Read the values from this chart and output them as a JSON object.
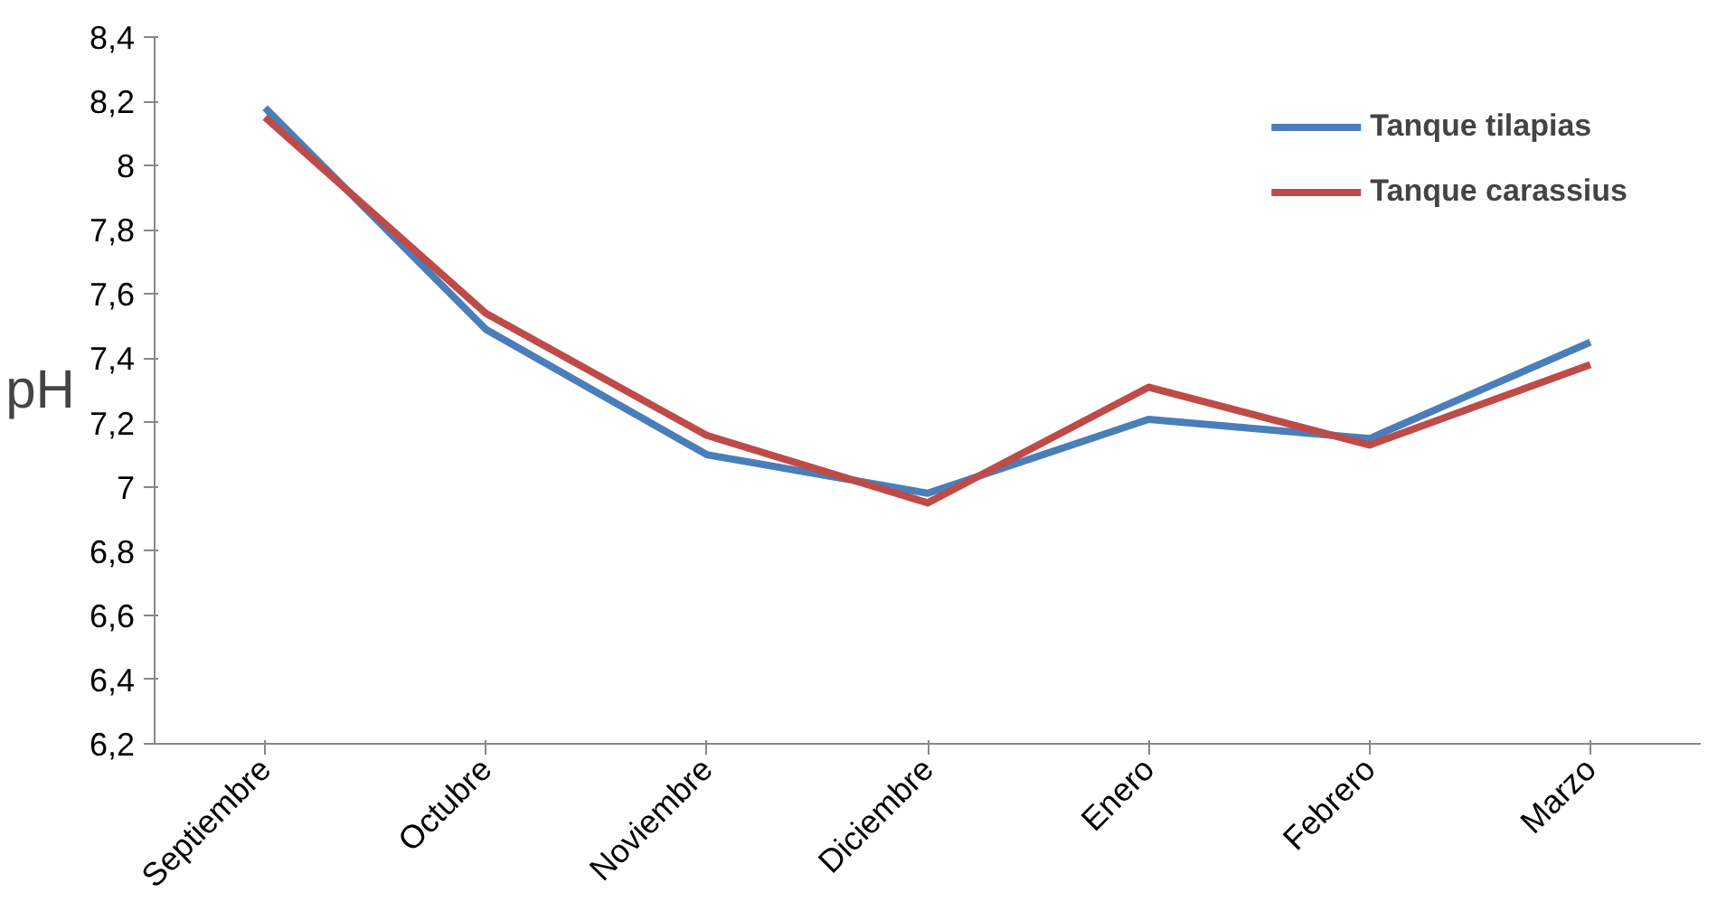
{
  "chart_data": {
    "type": "line",
    "ylabel": "pH",
    "categories": [
      "Septiembre",
      "Octubre",
      "Noviembre",
      "Diciembre",
      "Enero",
      "Febrero",
      "Marzo"
    ],
    "series": [
      {
        "name": "Tanque tilapias",
        "color": "#4a7ebb",
        "values": [
          8.18,
          7.49,
          7.1,
          6.98,
          7.21,
          7.15,
          7.45
        ]
      },
      {
        "name": "Tanque carassius",
        "color": "#be4b48",
        "values": [
          8.15,
          7.54,
          7.16,
          6.95,
          7.31,
          7.13,
          7.38
        ]
      }
    ],
    "ylim": [
      6.2,
      8.4
    ],
    "yticks": [
      {
        "value": 6.2,
        "label": "6,2"
      },
      {
        "value": 6.4,
        "label": "6,4"
      },
      {
        "value": 6.6,
        "label": "6,6"
      },
      {
        "value": 6.8,
        "label": "6,8"
      },
      {
        "value": 7,
        "label": "7"
      },
      {
        "value": 7.2,
        "label": "7,2"
      },
      {
        "value": 7.4,
        "label": "7,4"
      },
      {
        "value": 7.6,
        "label": "7,6"
      },
      {
        "value": 7.8,
        "label": "7,8"
      },
      {
        "value": 8,
        "label": "8"
      },
      {
        "value": 8.2,
        "label": "8,2"
      },
      {
        "value": 8.4,
        "label": "8,4"
      }
    ],
    "grid": false,
    "legend": "top right",
    "marker": "none",
    "line_style": "solid"
  }
}
